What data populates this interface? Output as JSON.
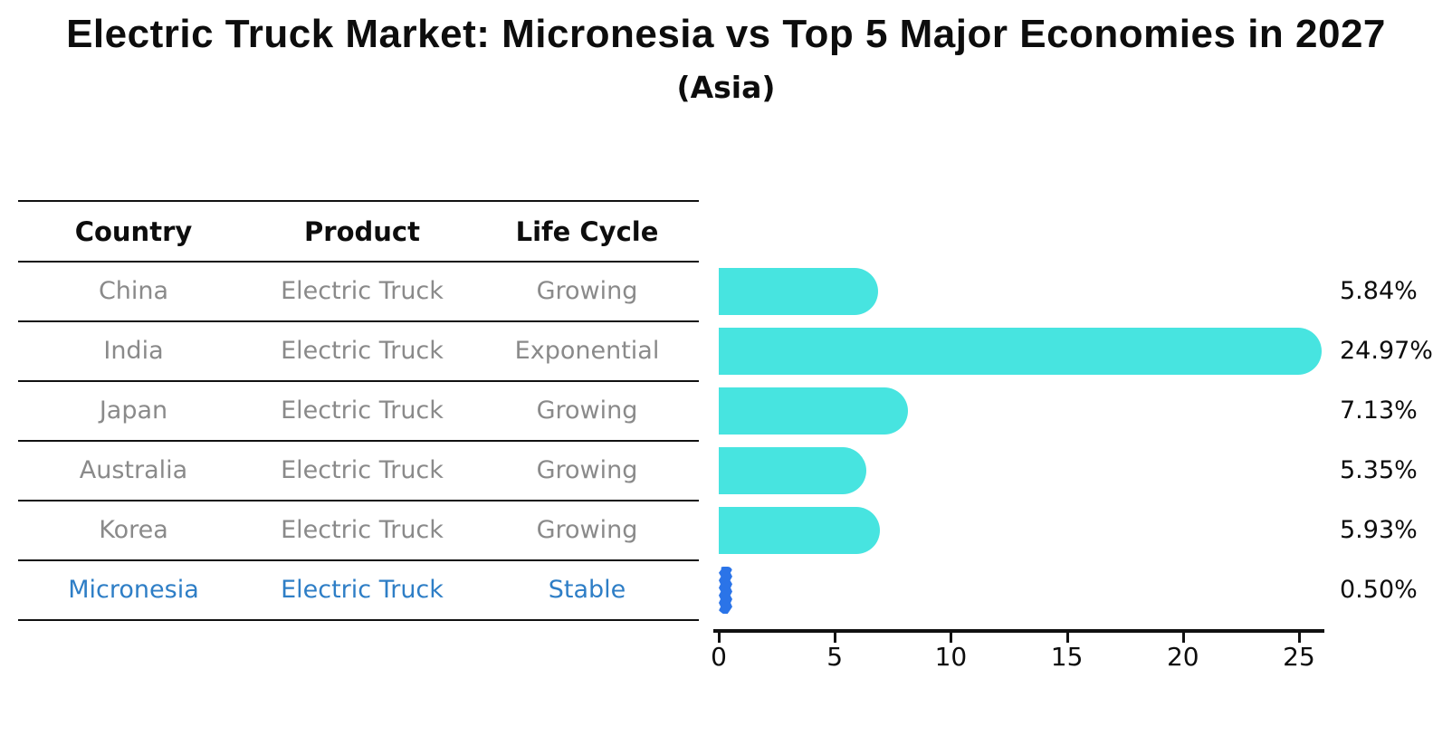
{
  "title": "Electric Truck Market: Micronesia vs Top 5 Major Economies in 2027",
  "subtitle": "(Asia)",
  "table": {
    "headers": [
      "Country",
      "Product",
      "Life Cycle"
    ],
    "rows": [
      {
        "country": "China",
        "product": "Electric Truck",
        "life_cycle": "Growing",
        "value_label": "5.84%",
        "highlight": false
      },
      {
        "country": "India",
        "product": "Electric Truck",
        "life_cycle": "Exponential",
        "value_label": "24.97%",
        "highlight": false
      },
      {
        "country": "Japan",
        "product": "Electric Truck",
        "life_cycle": "Growing",
        "value_label": "7.13%",
        "highlight": false
      },
      {
        "country": "Australia",
        "product": "Electric Truck",
        "life_cycle": "Growing",
        "value_label": "5.35%",
        "highlight": false
      },
      {
        "country": "Korea",
        "product": "Electric Truck",
        "life_cycle": "Growing",
        "value_label": "5.93%",
        "highlight": false
      },
      {
        "country": "Micronesia",
        "product": "Electric Truck",
        "life_cycle": "Stable",
        "value_label": "0.50%",
        "highlight": true
      }
    ]
  },
  "chart_data": {
    "type": "bar",
    "orientation": "horizontal",
    "title": "Electric Truck Market: Micronesia vs Top 5 Major Economies in 2027",
    "subtitle": "(Asia)",
    "categories": [
      "China",
      "India",
      "Japan",
      "Australia",
      "Korea",
      "Micronesia"
    ],
    "values": [
      5.84,
      24.97,
      7.13,
      5.35,
      5.93,
      0.5
    ],
    "value_labels": [
      "5.84%",
      "24.97%",
      "7.13%",
      "5.35%",
      "5.93%",
      "0.50%"
    ],
    "xlabel": "",
    "ylabel": "",
    "xticks": [
      0,
      5,
      10,
      15,
      20,
      25
    ],
    "xlim": [
      0,
      26
    ],
    "grid": false,
    "legend": "none",
    "bar_color": "#47e4e0",
    "highlight_color": "#2b74e8",
    "highlight_text_color": "#2e7ec6",
    "highlight_index": 5
  }
}
